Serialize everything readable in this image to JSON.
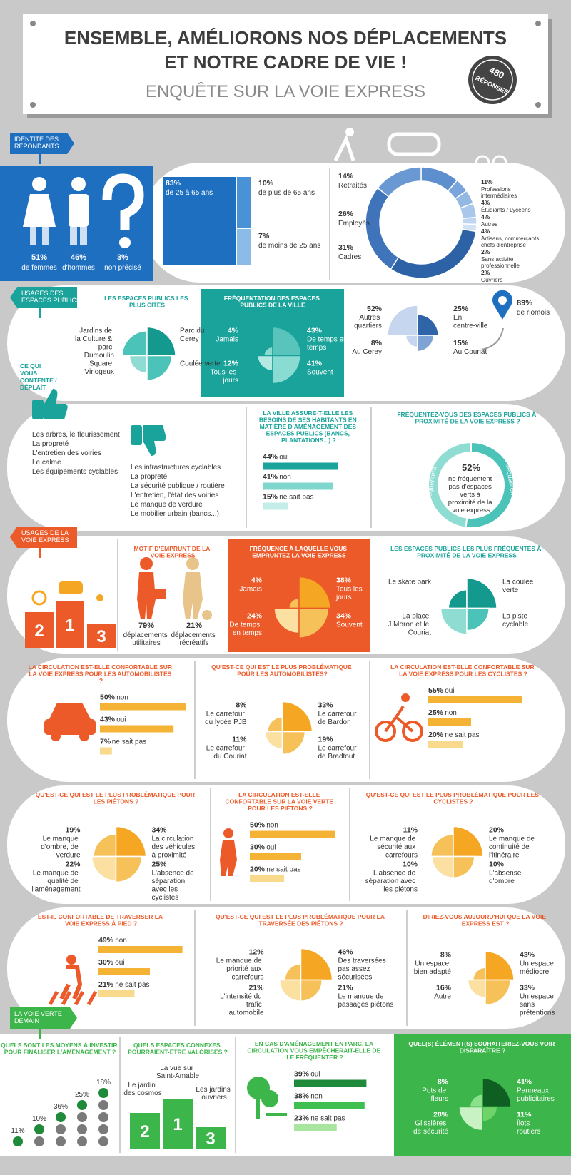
{
  "header": {
    "title_line1": "ENSEMBLE, AMÉLIORONS NOS DÉPLACEMENTS",
    "title_line2": "ET NOTRE CADRE DE VIE !",
    "subtitle": "ENQUÊTE SUR LA VOIE EXPRESS",
    "badge_value": 480,
    "badge_label": "RÉPONSES"
  },
  "sections": {
    "identity": "IDENTITÉ DES RÉPONDANTS",
    "public_spaces": "USAGES DES ESPACES PUBLICS",
    "satisfaction": "CE QUI VOUS CONTENTE / DÉPLAÎT",
    "express_usage": "USAGES DE LA VOIE EXPRESS",
    "green_future": "LA VOIE VERTE DEMAIN"
  },
  "gender": [
    {
      "percent": "51%",
      "label": "de femmes"
    },
    {
      "percent": "46%",
      "label": "d'hommes"
    },
    {
      "percent": "3%",
      "label": "non précisé"
    }
  ],
  "age": {
    "values": [
      83,
      10,
      7
    ],
    "value_labels": [
      "83%",
      "10%",
      "7%"
    ],
    "labels": [
      "de 25 à 65 ans",
      "de plus de 65 ans",
      "de moins de 25 ans"
    ]
  },
  "professions": {
    "values": [
      11,
      4,
      4,
      4,
      2,
      2,
      31,
      26,
      14
    ],
    "value_labels": [
      "11%",
      "4%",
      "4%",
      "4%",
      "2%",
      "2%",
      "31%",
      "26%",
      "14%"
    ],
    "labels": [
      "Professions intermédiaires",
      "Étudiants / Lycéens",
      "Autres",
      "Artisans, commerçants, chefs d'entreprise",
      "Sans activité professionnelle",
      "Ouvriers",
      "Cadres",
      "Employés",
      "Retraités"
    ]
  },
  "cited_spaces": {
    "title": "LES ESPACES PUBLICS LES PLUS CITÉS",
    "labels": [
      "Jardins de la Culture & parc Dumoulin",
      "Parc du Cerey",
      "Square Virlogeux",
      "Coulée verte"
    ],
    "values": [
      30,
      40,
      15,
      30
    ]
  },
  "public_frequency": {
    "title": "FRÉQUENTATION DES ESPACES PUBLICS DE LA VILLE",
    "labels": [
      "Jamais",
      "De temps en temps",
      "Tous les jours",
      "Souvent"
    ],
    "values": [
      4,
      43,
      12,
      41
    ],
    "value_labels": [
      "4%",
      "43%",
      "12%",
      "41%"
    ]
  },
  "home_area": {
    "labels": [
      "Autres quartiers",
      "En centre-ville",
      "Au Cerey",
      "Au Couriat"
    ],
    "values": [
      52,
      25,
      8,
      15
    ],
    "value_labels": [
      "52%",
      "25%",
      "8%",
      "15%"
    ]
  },
  "riomois": {
    "percent": "89%",
    "label": "de riomois"
  },
  "likes": [
    "Les arbres, le fleurissement",
    "La propreté",
    "L'entretien des voiries",
    "Le calme",
    "Les équipements cyclables"
  ],
  "dislikes": [
    "Les infrastructures cyclables",
    "La propreté",
    "La sécurité publique / routière",
    "L'entretien, l'état des voiries",
    "Le manque de verdure",
    "Le mobilier urbain (bancs...)"
  ],
  "needs": {
    "title": "LA VILLE ASSURE-T-ELLE LES BESOINS DE SES HABITANTS EN MATIÈRE D'AMÉNAGEMENT DES ESPACES PUBLICS (BANCS, PLANTATIONS...) ?",
    "labels": [
      "oui",
      "non",
      "ne sait pas"
    ],
    "values": [
      44,
      41,
      15
    ],
    "value_labels": [
      "44%",
      "41%",
      "15%"
    ]
  },
  "proximity": {
    "title": "FRÉQUENTEZ-VOUS DES ESPACES PUBLICS À PROXIMITÉ DE LA VOIE EXPRESS ?",
    "labels": [
      "Fréquentent",
      "Ne fréquentent pas"
    ],
    "values": [
      48,
      52
    ],
    "highlight": {
      "percent": "52%",
      "text": "ne fréquentent pas d'espaces verts à proximité de la voie express"
    }
  },
  "express_modes": {
    "ranks": [
      2,
      1,
      3
    ]
  },
  "motive": {
    "title": "MOTIF D'EMPRUNT DE LA VOIE EXPRESS",
    "items": [
      {
        "percent": "79%",
        "label": "déplacements utilitaires"
      },
      {
        "percent": "21%",
        "label": "déplacements récréatifs"
      }
    ]
  },
  "express_frequency": {
    "title": "FRÉQUENCE À LAQUELLE VOUS EMPRUNTEZ LA VOIE EXPRESS",
    "labels": [
      "Jamais",
      "Tous les jours",
      "De temps en temps",
      "Souvent"
    ],
    "values": [
      4,
      38,
      24,
      34
    ],
    "value_labels": [
      "4%",
      "38%",
      "24%",
      "34%"
    ]
  },
  "express_spaces": {
    "title": "LES ESPACES PUBLICS LES PLUS FRÉQUENTÉS À PROXIMITÉ DE LA VOIE EXPRESS",
    "labels": [
      "Le skate park",
      "La coulée verte",
      "La place J.Moron et le Couriat",
      "La piste cyclable"
    ],
    "values": [
      15,
      40,
      30,
      22
    ]
  },
  "car_comfort": {
    "title": "LA CIRCULATION EST-ELLE CONFORTABLE SUR LA VOIE EXPRESS POUR LES AUTOMOBILISTES ?",
    "labels": [
      "non",
      "oui",
      "ne sait pas"
    ],
    "values": [
      50,
      43,
      7
    ],
    "value_labels": [
      "50%",
      "43%",
      "7%"
    ]
  },
  "car_problems": {
    "title": "QU'EST-CE QUI EST LE PLUS PROBLÉMATIQUE POUR LES AUTOMOBILISTES?",
    "labels": [
      "Le carrefour du lycée PJB",
      "Le carrefour de Bardon",
      "Le carrefour du Couriat",
      "Le carrefour de Bradtout"
    ],
    "values": [
      8,
      33,
      11,
      19
    ],
    "value_labels": [
      "8%",
      "33%",
      "11%",
      "19%"
    ]
  },
  "cyclist_comfort": {
    "title": "LA CIRCULATION EST-ELLE CONFORTABLE SUR LA VOIE EXPRESS POUR LES CYCLISTES ?",
    "labels": [
      "oui",
      "non",
      "ne sait pas"
    ],
    "values": [
      55,
      25,
      20
    ],
    "value_labels": [
      "55%",
      "25%",
      "20%"
    ]
  },
  "pedestrian_problems": {
    "title": "QU'EST-CE QUI EST LE PLUS PROBLÉMATIQUE POUR LES PIÉTONS ?",
    "labels": [
      "Le manque d'ombre, de verdure",
      "La circulation des véhicules à proximité",
      "Le manque de qualité de l'aménagement",
      "L'absence de séparation avec les cyclistes"
    ],
    "values": [
      19,
      34,
      22,
      25
    ],
    "value_labels": [
      "19%",
      "34%",
      "22%",
      "25%"
    ]
  },
  "pedestrian_comfort": {
    "title": "LA CIRCULATION EST-ELLE CONFORTABLE SUR LA VOIE VERTE POUR LES PIÉTONS ?",
    "labels": [
      "non",
      "oui",
      "ne sait pas"
    ],
    "values": [
      50,
      30,
      20
    ],
    "value_labels": [
      "50%",
      "30%",
      "20%"
    ]
  },
  "cyclist_problems": {
    "title": "QU'EST-CE QUI EST LE PLUS PROBLÉMATIQUE POUR LES CYCLISTES ?",
    "labels": [
      "Le manque de sécurité aux carrefours",
      "Le manque de continuité de l'itinéraire",
      "L'absence de séparation avec les piétons",
      "L'absense d'ombre"
    ],
    "values": [
      11,
      20,
      10,
      10
    ],
    "value_labels": [
      "11%",
      "20%",
      "10%",
      "10%"
    ]
  },
  "crossing_comfort": {
    "title": "EST-IL CONFORTABLE DE TRAVERSER LA VOIE EXPRESS À PIED ?",
    "labels": [
      "non",
      "oui",
      "ne sait pas"
    ],
    "values": [
      49,
      30,
      21
    ],
    "value_labels": [
      "49%",
      "30%",
      "21%"
    ]
  },
  "crossing_problems": {
    "title": "QU'EST-CE QUI EST LE PLUS PROBLÉMATIQUE POUR LA TRAVERSÉE DES PIÉTONS ?",
    "labels": [
      "Le manque de priorité aux carrefours",
      "Des traversées pas assez sécurisées",
      "L'intensité du trafic automobile",
      "Le manque de passages piétons"
    ],
    "values": [
      12,
      46,
      21,
      21
    ],
    "value_labels": [
      "12%",
      "46%",
      "21%",
      "21%"
    ]
  },
  "express_opinion": {
    "title": "DIRIEZ-VOUS AUJOURD'HUI QUE LA VOIE EXPRESS EST ?",
    "labels": [
      "Un espace bien adapté",
      "Un espace médiocre",
      "Autre",
      "Un espace sans prétentions"
    ],
    "values": [
      8,
      43,
      16,
      33
    ],
    "value_labels": [
      "8%",
      "43%",
      "16%",
      "33%"
    ]
  },
  "investment": {
    "title": "QUELS SONT LES MOYENS À INVESTIR POUR FINALISER L'AMÉNAGEMENT ?",
    "percents": [
      "11%",
      "10%",
      "36%",
      "25%",
      "18%"
    ]
  },
  "connected_spaces": {
    "title": "QUELS ESPACES CONNEXES POURRAIENT-ÊTRE VALORISÉS ?",
    "labels": [
      "Le jardin des cosmos",
      "La vue sur Saint-Amable",
      "Les jardins ouvriers"
    ],
    "ranks": [
      2,
      1,
      3
    ]
  },
  "park_traffic": {
    "title": "EN CAS D'AMÉNAGEMENT EN PARC, LA CIRCULATION VOUS EMPÊCHERAIT-ELLE DE LE FRÉQUENTER ?",
    "labels": [
      "oui",
      "non",
      "ne sait pas"
    ],
    "values": [
      39,
      38,
      23
    ],
    "value_labels": [
      "39%",
      "38%",
      "23%"
    ]
  },
  "remove_elements": {
    "title": "QUEL(S) ÉLÉMENT(S) SOUHAITERIEZ-VOUS VOIR DISPARAÎTRE ?",
    "labels": [
      "Pots de fleurs",
      "Panneaux publicitaires",
      "Glissières de sécurité",
      "Îlots routiers"
    ],
    "values": [
      8,
      41,
      28,
      11
    ],
    "value_labels": [
      "8%",
      "41%",
      "28%",
      "11%"
    ]
  }
}
